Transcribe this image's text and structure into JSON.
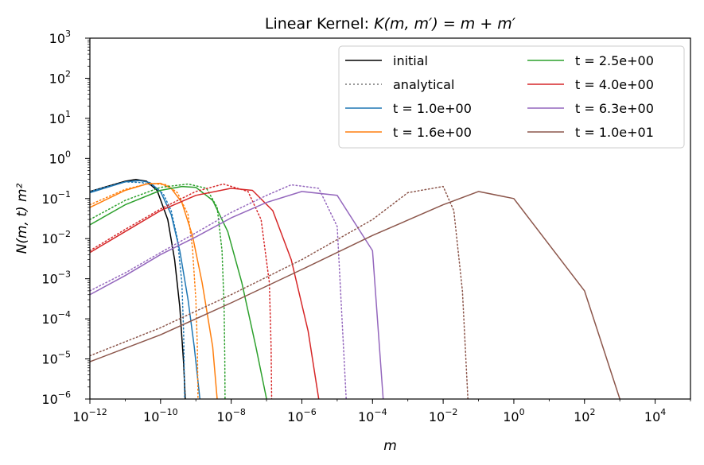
{
  "chart_data": {
    "type": "line",
    "title_prefix": "Linear Kernel: ",
    "title_formula": "K(m, m′) = m + m′",
    "xlabel": "m",
    "ylabel": "N(m, t) m²",
    "xscale": "log",
    "yscale": "log",
    "xlim": [
      1e-12,
      100000.0
    ],
    "ylim": [
      1e-06,
      1000.0
    ],
    "x_ticks": [
      {
        "base": "10",
        "exp": "−12",
        "value": 1e-12
      },
      {
        "base": "10",
        "exp": "−10",
        "value": 1e-10
      },
      {
        "base": "10",
        "exp": "−8",
        "value": 1e-08
      },
      {
        "base": "10",
        "exp": "−6",
        "value": 1e-06
      },
      {
        "base": "10",
        "exp": "−4",
        "value": 0.0001
      },
      {
        "base": "10",
        "exp": "−2",
        "value": 0.01
      },
      {
        "base": "10",
        "exp": "0",
        "value": 1
      },
      {
        "base": "10",
        "exp": "2",
        "value": 100
      },
      {
        "base": "10",
        "exp": "4",
        "value": 10000
      }
    ],
    "y_ticks": [
      {
        "base": "10",
        "exp": "−6",
        "value": 1e-06
      },
      {
        "base": "10",
        "exp": "−5",
        "value": 1e-05
      },
      {
        "base": "10",
        "exp": "−4",
        "value": 0.0001
      },
      {
        "base": "10",
        "exp": "−3",
        "value": 0.001
      },
      {
        "base": "10",
        "exp": "−2",
        "value": 0.01
      },
      {
        "base": "10",
        "exp": "−1",
        "value": 0.1
      },
      {
        "base": "10",
        "exp": "0",
        "value": 1
      },
      {
        "base": "10",
        "exp": "1",
        "value": 10
      },
      {
        "base": "10",
        "exp": "2",
        "value": 100
      },
      {
        "base": "10",
        "exp": "3",
        "value": 1000
      }
    ],
    "grid": false,
    "legend_placement": "top-right",
    "legend": [
      {
        "label": "initial",
        "color": "#000000",
        "style": "solid"
      },
      {
        "label": "analytical",
        "color": "#777777",
        "style": "dotted"
      },
      {
        "label": "t = 1.0e+00",
        "color": "#1f77b4",
        "style": "solid"
      },
      {
        "label": "t = 1.6e+00",
        "color": "#ff7f0e",
        "style": "solid"
      },
      {
        "label": "t = 2.5e+00",
        "color": "#2ca02c",
        "style": "solid"
      },
      {
        "label": "t = 4.0e+00",
        "color": "#d62728",
        "style": "solid"
      },
      {
        "label": "t = 6.3e+00",
        "color": "#9467bd",
        "style": "solid"
      },
      {
        "label": "t = 1.0e+01",
        "color": "#8c564b",
        "style": "solid"
      }
    ],
    "series": [
      {
        "name": "initial",
        "color": "#000000",
        "style": "solid",
        "points": [
          [
            1e-12,
            0.15
          ],
          [
            1e-11,
            0.27
          ],
          [
            2e-11,
            0.3
          ],
          [
            4e-11,
            0.27
          ],
          [
            8e-11,
            0.16
          ],
          [
            1.6e-10,
            0.03
          ],
          [
            2.5e-10,
            0.003
          ],
          [
            3.5e-10,
            0.0002
          ],
          [
            4.5e-10,
            8e-06
          ],
          [
            5e-10,
            1e-06
          ]
        ]
      },
      {
        "name": "t = 1.0e+00",
        "color": "#1f77b4",
        "style": "solid",
        "points": [
          [
            1e-12,
            0.14
          ],
          [
            1e-11,
            0.26
          ],
          [
            2.5e-11,
            0.28
          ],
          [
            5e-11,
            0.25
          ],
          [
            1e-10,
            0.15
          ],
          [
            2e-10,
            0.04
          ],
          [
            3.5e-10,
            0.005
          ],
          [
            6e-10,
            0.0003
          ],
          [
            9e-10,
            2e-05
          ],
          [
            1.3e-09,
            1e-06
          ]
        ]
      },
      {
        "name": "t = 1.6e+00 analytical",
        "color": "#1f77b4",
        "style": "dotted",
        "points": [
          [
            1e-12,
            0.15
          ],
          [
            1e-11,
            0.26
          ],
          [
            3e-11,
            0.25
          ],
          [
            6e-11,
            0.21
          ],
          [
            1.2e-10,
            0.13
          ],
          [
            2e-10,
            0.05
          ],
          [
            3e-10,
            0.01
          ],
          [
            4e-10,
            0.0008
          ],
          [
            4.5e-10,
            5e-05
          ],
          [
            4.8e-10,
            1e-06
          ]
        ]
      },
      {
        "name": "t = 1.6e+00",
        "color": "#ff7f0e",
        "style": "solid",
        "points": [
          [
            1e-12,
            0.06
          ],
          [
            1e-11,
            0.16
          ],
          [
            4e-11,
            0.23
          ],
          [
            1e-10,
            0.24
          ],
          [
            2e-10,
            0.18
          ],
          [
            4e-10,
            0.08
          ],
          [
            8e-10,
            0.012
          ],
          [
            1.5e-09,
            0.0008
          ],
          [
            3e-09,
            2e-05
          ],
          [
            4e-09,
            1e-06
          ]
        ]
      },
      {
        "name": "t = 1.6e+00 dotted",
        "color": "#ff7f0e",
        "style": "dotted",
        "points": [
          [
            1e-12,
            0.07
          ],
          [
            1e-11,
            0.17
          ],
          [
            5e-11,
            0.24
          ],
          [
            1.5e-10,
            0.22
          ],
          [
            3e-10,
            0.14
          ],
          [
            6e-10,
            0.04
          ],
          [
            8e-10,
            0.006
          ],
          [
            1e-09,
            0.0003
          ],
          [
            1.1e-09,
            2e-05
          ],
          [
            1.15e-09,
            1e-06
          ]
        ]
      },
      {
        "name": "t = 2.5e+00",
        "color": "#2ca02c",
        "style": "solid",
        "points": [
          [
            1e-12,
            0.022
          ],
          [
            1e-11,
            0.07
          ],
          [
            1e-10,
            0.16
          ],
          [
            4e-10,
            0.2
          ],
          [
            1e-09,
            0.19
          ],
          [
            3e-09,
            0.09
          ],
          [
            8e-09,
            0.015
          ],
          [
            2e-08,
            0.0008
          ],
          [
            5e-08,
            2e-05
          ],
          [
            1e-07,
            1e-06
          ]
        ]
      },
      {
        "name": "t = 2.5e+00 dotted",
        "color": "#2ca02c",
        "style": "dotted",
        "points": [
          [
            1e-12,
            0.03
          ],
          [
            1e-11,
            0.09
          ],
          [
            1e-10,
            0.19
          ],
          [
            6e-10,
            0.23
          ],
          [
            2e-09,
            0.18
          ],
          [
            4e-09,
            0.06
          ],
          [
            5.5e-09,
            0.005
          ],
          [
            6.3e-09,
            0.0002
          ],
          [
            6.6e-09,
            1e-05
          ],
          [
            6.7e-09,
            1e-06
          ]
        ]
      },
      {
        "name": "t = 4.0e+00",
        "color": "#d62728",
        "style": "solid",
        "points": [
          [
            1e-12,
            0.0045
          ],
          [
            1e-11,
            0.015
          ],
          [
            1e-10,
            0.05
          ],
          [
            1e-09,
            0.12
          ],
          [
            1e-08,
            0.18
          ],
          [
            4e-08,
            0.16
          ],
          [
            1.5e-07,
            0.05
          ],
          [
            5e-07,
            0.003
          ],
          [
            1.5e-06,
            5e-05
          ],
          [
            3e-06,
            1e-06
          ]
        ]
      },
      {
        "name": "t = 4.0e+00 dotted",
        "color": "#d62728",
        "style": "dotted",
        "points": [
          [
            1e-12,
            0.005
          ],
          [
            1e-11,
            0.017
          ],
          [
            1e-10,
            0.055
          ],
          [
            1e-09,
            0.15
          ],
          [
            6e-09,
            0.23
          ],
          [
            3e-08,
            0.15
          ],
          [
            7e-08,
            0.03
          ],
          [
            1.2e-07,
            0.0008
          ],
          [
            1.35e-07,
            2e-05
          ],
          [
            1.4e-07,
            1e-06
          ]
        ]
      },
      {
        "name": "t = 6.3e+00",
        "color": "#9467bd",
        "style": "solid",
        "points": [
          [
            1e-12,
            0.0004
          ],
          [
            1e-11,
            0.0012
          ],
          [
            1e-10,
            0.004
          ],
          [
            1e-09,
            0.011
          ],
          [
            1e-08,
            0.033
          ],
          [
            1e-07,
            0.08
          ],
          [
            1e-06,
            0.15
          ],
          [
            1e-05,
            0.12
          ],
          [
            0.0001,
            0.005
          ],
          [
            0.0002,
            1e-06
          ]
        ]
      },
      {
        "name": "t = 6.3e+00 dotted",
        "color": "#9467bd",
        "style": "dotted",
        "points": [
          [
            1e-12,
            0.0005
          ],
          [
            1e-11,
            0.0014
          ],
          [
            1e-10,
            0.0045
          ],
          [
            1e-09,
            0.014
          ],
          [
            1e-08,
            0.045
          ],
          [
            1e-07,
            0.12
          ],
          [
            5e-07,
            0.22
          ],
          [
            3e-06,
            0.18
          ],
          [
            1e-05,
            0.02
          ],
          [
            1.8e-05,
            1e-06
          ]
        ]
      },
      {
        "name": "t = 1.0e+01",
        "color": "#8c564b",
        "style": "solid",
        "points": [
          [
            1e-12,
            8.5e-06
          ],
          [
            1e-10,
            4e-05
          ],
          [
            1e-08,
            0.00025
          ],
          [
            1e-06,
            0.0017
          ],
          [
            0.0001,
            0.012
          ],
          [
            0.01,
            0.07
          ],
          [
            0.1,
            0.15
          ],
          [
            1,
            0.1
          ],
          [
            100,
            0.0005
          ],
          [
            1000,
            1e-06
          ]
        ]
      },
      {
        "name": "t = 1.0e+01 dotted",
        "color": "#8c564b",
        "style": "dotted",
        "points": [
          [
            1e-12,
            1.2e-05
          ],
          [
            1e-10,
            6e-05
          ],
          [
            1e-08,
            0.0004
          ],
          [
            1e-06,
            0.003
          ],
          [
            0.0001,
            0.03
          ],
          [
            0.001,
            0.14
          ],
          [
            0.01,
            0.2
          ],
          [
            0.02,
            0.05
          ],
          [
            0.035,
            0.0005
          ],
          [
            0.05,
            1e-06
          ]
        ]
      }
    ]
  }
}
